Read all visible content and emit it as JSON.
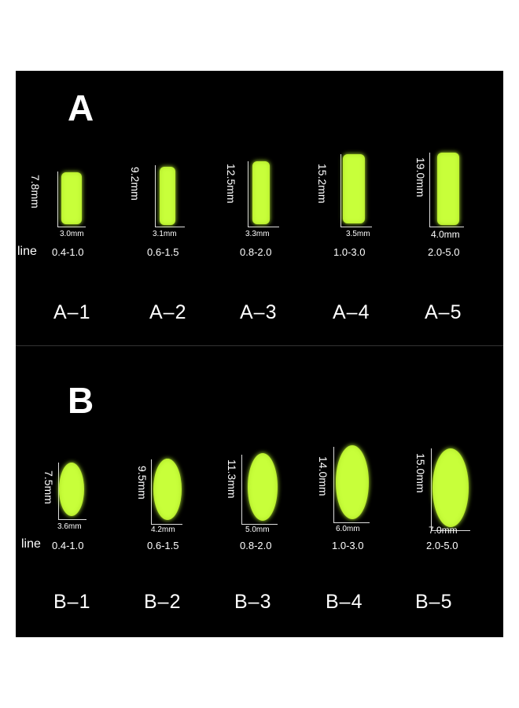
{
  "sections": [
    {
      "title": "A",
      "line_word": "line",
      "items": [
        {
          "code": "A–1",
          "length": "7.8mm",
          "width": "3.0mm",
          "line": "0.4-1.0",
          "shape": "rect"
        },
        {
          "code": "A–2",
          "length": "9.2mm",
          "width": "3.1mm",
          "line": "0.6-1.5",
          "shape": "rect"
        },
        {
          "code": "A–3",
          "length": "12.5mm",
          "width": "3.3mm",
          "line": "0.8-2.0",
          "shape": "rect"
        },
        {
          "code": "A–4",
          "length": "15.2mm",
          "width": "3.5mm",
          "line": "1.0-3.0",
          "shape": "rect"
        },
        {
          "code": "A–5",
          "length": "19.0mm",
          "width": "4.0mm",
          "line": "2.0-5.0",
          "shape": "rect"
        }
      ]
    },
    {
      "title": "B",
      "line_word": "line",
      "items": [
        {
          "code": "B–1",
          "length": "7.5mm",
          "width": "3.6mm",
          "line": "0.4-1.0",
          "shape": "oval"
        },
        {
          "code": "B–2",
          "length": "9.5mm",
          "width": "4.2mm",
          "line": "0.6-1.5",
          "shape": "oval"
        },
        {
          "code": "B–3",
          "length": "11.3mm",
          "width": "5.0mm",
          "line": "0.8-2.0",
          "shape": "oval"
        },
        {
          "code": "B–4",
          "length": "14.0mm",
          "width": "6.0mm",
          "line": "1.0-3.0",
          "shape": "oval"
        },
        {
          "code": "B–5",
          "length": "15.0mm",
          "width": "7.0mm",
          "line": "2.0-5.0",
          "shape": "oval"
        }
      ]
    }
  ],
  "colors": {
    "background": "#000000",
    "bead": "#c8ff3a",
    "text": "#ffffff"
  }
}
